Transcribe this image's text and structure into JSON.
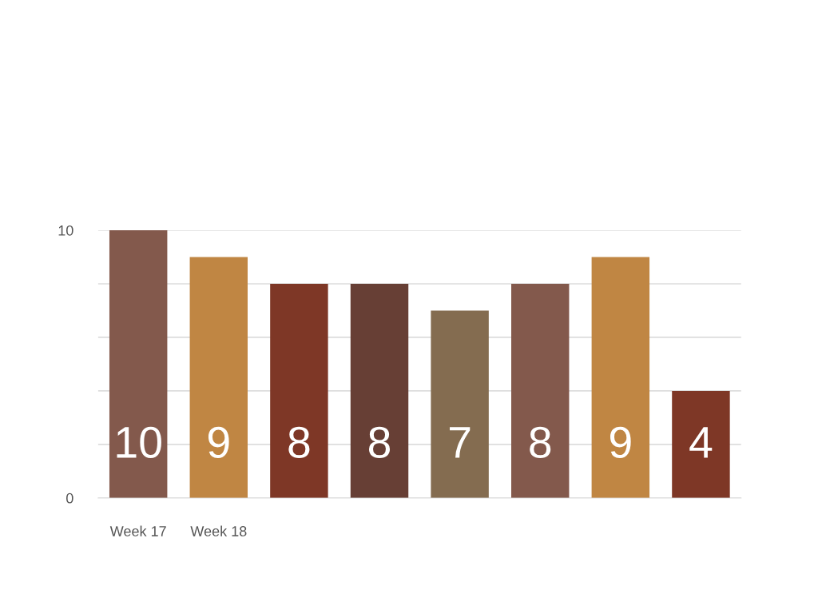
{
  "chart_data": {
    "type": "bar",
    "categories": [
      "Week 17",
      "Week 18",
      null,
      null,
      null,
      null,
      null,
      null
    ],
    "values": [
      10,
      9,
      8,
      8,
      7,
      8,
      9,
      4
    ],
    "colors": [
      "#83594c",
      "#c08643",
      "#7e3726",
      "#673f35",
      "#846c50",
      "#83594c",
      "#c08643",
      "#7e3726"
    ],
    "ylim": [
      0,
      10
    ],
    "yticks": [
      0,
      {
        "value": 2,
        "label": null
      },
      {
        "value": 4,
        "label": null
      },
      {
        "value": 6,
        "label": null
      },
      {
        "value": 8,
        "label": null
      },
      10
    ],
    "grid": "y",
    "data_labels": true
  }
}
